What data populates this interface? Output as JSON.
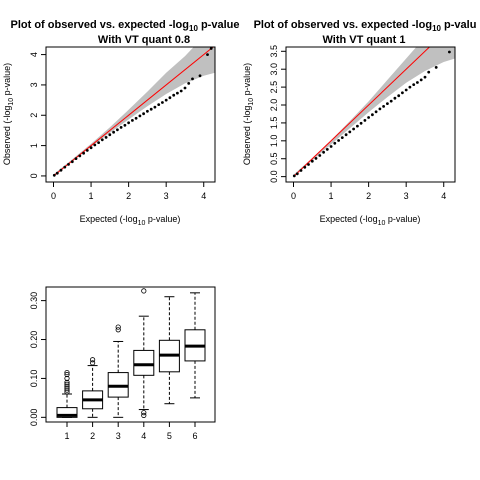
{
  "chart_data": [
    {
      "type": "scatter",
      "title_line1_prefix": "Plot of observed vs. expected -log",
      "title_line1_sub": "10",
      "title_line1_suffix": " p-value",
      "title_line2": "With VT quant 0.8",
      "xlabel_prefix": "Expected (-log",
      "xlabel_sub": "10",
      "xlabel_suffix": " p-value)",
      "ylabel_prefix": "Observed (-log",
      "ylabel_sub": "10",
      "ylabel_suffix": " p-value)",
      "xlim": [
        -0.2,
        4.3
      ],
      "ylim": [
        -0.2,
        4.25
      ],
      "xticks": [
        0,
        1,
        2,
        3,
        4
      ],
      "xtick_labels": [
        "0",
        "1",
        "2",
        "3",
        "4"
      ],
      "yticks": [
        0,
        1,
        2,
        3,
        4
      ],
      "ytick_labels": [
        "0",
        "1",
        "2",
        "3",
        "4"
      ],
      "points": [
        [
          0.02,
          0.02
        ],
        [
          0.1,
          0.09
        ],
        [
          0.2,
          0.19
        ],
        [
          0.3,
          0.29
        ],
        [
          0.4,
          0.38
        ],
        [
          0.5,
          0.47
        ],
        [
          0.6,
          0.57
        ],
        [
          0.7,
          0.66
        ],
        [
          0.8,
          0.75
        ],
        [
          0.9,
          0.84
        ],
        [
          1.0,
          0.93
        ],
        [
          1.1,
          1.02
        ],
        [
          1.2,
          1.1
        ],
        [
          1.3,
          1.19
        ],
        [
          1.4,
          1.27
        ],
        [
          1.5,
          1.36
        ],
        [
          1.6,
          1.44
        ],
        [
          1.7,
          1.52
        ],
        [
          1.8,
          1.6
        ],
        [
          1.9,
          1.67
        ],
        [
          2.0,
          1.75
        ],
        [
          2.1,
          1.83
        ],
        [
          2.2,
          1.9
        ],
        [
          2.3,
          1.98
        ],
        [
          2.4,
          2.05
        ],
        [
          2.5,
          2.13
        ],
        [
          2.6,
          2.2
        ],
        [
          2.7,
          2.27
        ],
        [
          2.8,
          2.35
        ],
        [
          2.9,
          2.42
        ],
        [
          3.0,
          2.5
        ],
        [
          3.1,
          2.58
        ],
        [
          3.2,
          2.66
        ],
        [
          3.3,
          2.73
        ],
        [
          3.4,
          2.8
        ],
        [
          3.5,
          2.9
        ],
        [
          3.6,
          3.05
        ],
        [
          3.7,
          3.2
        ],
        [
          3.9,
          3.3
        ],
        [
          4.1,
          4.0
        ],
        [
          4.2,
          4.2
        ]
      ],
      "reference_line": [
        [
          0,
          0
        ],
        [
          4.3,
          4.3
        ]
      ],
      "ci_band": {
        "x": [
          0,
          0.5,
          1,
          1.5,
          2,
          2.5,
          3,
          3.5,
          4,
          4.3
        ],
        "lower": [
          0,
          0.48,
          0.96,
          1.42,
          1.86,
          2.3,
          2.7,
          3.05,
          3.3,
          3.4
        ],
        "upper": [
          0.05,
          0.55,
          1.06,
          1.6,
          2.18,
          2.78,
          3.4,
          3.95,
          4.6,
          5.0
        ]
      },
      "colors": {
        "points": "#000000",
        "line": "#ff0000",
        "band": "#c0c0c0"
      }
    },
    {
      "type": "scatter",
      "title_line1_prefix": "Plot of observed vs. expected -log",
      "title_line1_sub": "10",
      "title_line1_suffix": " p-valu",
      "title_line2": "With VT quant 1",
      "xlabel_prefix": "Expected (-log",
      "xlabel_sub": "10",
      "xlabel_suffix": " p-value)",
      "ylabel_prefix": "Observed (-log",
      "ylabel_sub": "10",
      "ylabel_suffix": " p-value)",
      "xlim": [
        -0.2,
        4.3
      ],
      "ylim": [
        -0.15,
        3.62
      ],
      "xticks": [
        0,
        1,
        2,
        3,
        4
      ],
      "xtick_labels": [
        "0",
        "1",
        "2",
        "3",
        "4"
      ],
      "yticks": [
        0,
        0.5,
        1,
        1.5,
        2,
        2.5,
        3,
        3.5
      ],
      "ytick_labels": [
        "0.0",
        "0.5",
        "1.0",
        "1.5",
        "2.0",
        "2.5",
        "3.0",
        "3.5"
      ],
      "points": [
        [
          0.02,
          0.02
        ],
        [
          0.1,
          0.08
        ],
        [
          0.2,
          0.17
        ],
        [
          0.3,
          0.26
        ],
        [
          0.4,
          0.34
        ],
        [
          0.5,
          0.43
        ],
        [
          0.6,
          0.51
        ],
        [
          0.7,
          0.59
        ],
        [
          0.8,
          0.68
        ],
        [
          0.9,
          0.76
        ],
        [
          1.0,
          0.84
        ],
        [
          1.1,
          0.93
        ],
        [
          1.2,
          1.01
        ],
        [
          1.3,
          1.09
        ],
        [
          1.4,
          1.17
        ],
        [
          1.5,
          1.25
        ],
        [
          1.6,
          1.33
        ],
        [
          1.7,
          1.41
        ],
        [
          1.8,
          1.49
        ],
        [
          1.9,
          1.57
        ],
        [
          2.0,
          1.65
        ],
        [
          2.1,
          1.73
        ],
        [
          2.2,
          1.81
        ],
        [
          2.3,
          1.89
        ],
        [
          2.4,
          1.96
        ],
        [
          2.5,
          2.04
        ],
        [
          2.6,
          2.11
        ],
        [
          2.7,
          2.19
        ],
        [
          2.8,
          2.26
        ],
        [
          2.9,
          2.34
        ],
        [
          3.0,
          2.42
        ],
        [
          3.1,
          2.5
        ],
        [
          3.2,
          2.57
        ],
        [
          3.3,
          2.63
        ],
        [
          3.4,
          2.7
        ],
        [
          3.5,
          2.78
        ],
        [
          3.6,
          2.92
        ],
        [
          3.8,
          3.05
        ],
        [
          4.15,
          3.48
        ]
      ],
      "reference_line": [
        [
          0,
          0
        ],
        [
          4.3,
          4.3
        ]
      ],
      "ci_band": {
        "x": [
          0,
          0.5,
          1,
          1.5,
          2,
          2.5,
          3,
          3.5,
          4,
          4.3
        ],
        "lower": [
          0,
          0.45,
          0.9,
          1.35,
          1.8,
          2.22,
          2.62,
          2.95,
          3.2,
          3.3
        ],
        "upper": [
          0.05,
          0.52,
          1.02,
          1.55,
          2.1,
          2.7,
          3.3,
          3.9,
          4.5,
          4.9
        ]
      },
      "colors": {
        "points": "#000000",
        "line": "#ff0000",
        "band": "#c0c0c0"
      }
    },
    {
      "type": "boxplot",
      "categories": [
        "1",
        "2",
        "3",
        "4",
        "5",
        "6"
      ],
      "ylim": [
        -0.012,
        0.335
      ],
      "yticks": [
        0,
        0.1,
        0.2,
        0.3
      ],
      "ytick_labels": [
        "0.00",
        "0.10",
        "0.20",
        "0.30"
      ],
      "boxes": [
        {
          "lower_whisker": 0.0,
          "q1": 0.0,
          "median": 0.005,
          "q3": 0.025,
          "upper_whisker": 0.06,
          "outliers": [
            0.065,
            0.07,
            0.075,
            0.08,
            0.085,
            0.09,
            0.1,
            0.11,
            0.115
          ]
        },
        {
          "lower_whisker": 0.0,
          "q1": 0.022,
          "median": 0.045,
          "q3": 0.068,
          "upper_whisker": 0.133,
          "outliers": [
            0.14,
            0.148
          ]
        },
        {
          "lower_whisker": 0.0,
          "q1": 0.052,
          "median": 0.08,
          "q3": 0.115,
          "upper_whisker": 0.195,
          "outliers": [
            0.225,
            0.232
          ]
        },
        {
          "lower_whisker": 0.02,
          "q1": 0.108,
          "median": 0.135,
          "q3": 0.172,
          "upper_whisker": 0.26,
          "outliers": [
            0.005,
            0.012,
            0.325
          ]
        },
        {
          "lower_whisker": 0.035,
          "q1": 0.117,
          "median": 0.16,
          "q3": 0.198,
          "upper_whisker": 0.31,
          "outliers": []
        },
        {
          "lower_whisker": 0.05,
          "q1": 0.145,
          "median": 0.183,
          "q3": 0.225,
          "upper_whisker": 0.32,
          "outliers": []
        }
      ],
      "colors": {
        "box": "#000000",
        "fill": "#ffffff"
      }
    }
  ]
}
